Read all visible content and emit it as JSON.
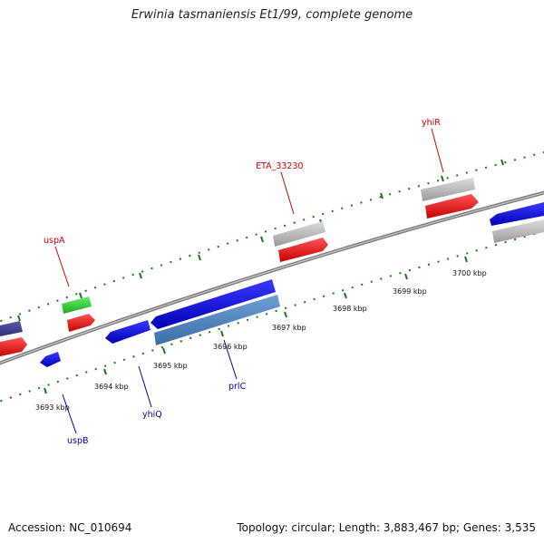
{
  "title": "Erwinia tasmaniensis Et1/99, complete genome",
  "footer": {
    "accession": "Accession: NC_010694",
    "stats": "Topology: circular; Length: 3,883,467 bp; Genes: 3,535"
  },
  "colors": {
    "forward_label": "#cc0000",
    "reverse_label": "#0000aa",
    "tick": "#1a7a1a",
    "backbone": "#808080"
  },
  "scale": {
    "unit": "kbp",
    "ticks": [
      "3693 kbp",
      "3694 kbp",
      "3695 kbp",
      "3696 kbp",
      "3697 kbp",
      "3698 kbp",
      "3699 kbp",
      "3700 kbp"
    ]
  },
  "gene_labels": {
    "forward": [
      "uspA",
      "ETA_33230",
      "yhiR"
    ],
    "reverse": [
      "uspB",
      "yhiQ",
      "prlC"
    ]
  }
}
